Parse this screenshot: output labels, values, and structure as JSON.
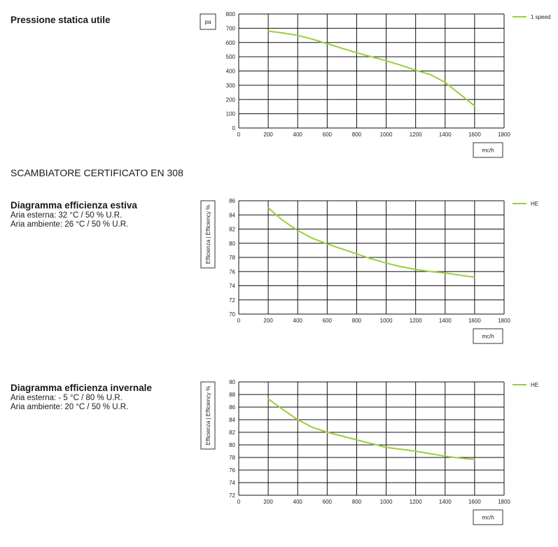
{
  "section_title": "SCAMBIATORE CERTIFICATO EN 308",
  "colors": {
    "series": "#9ccc3c",
    "grid": "#111111"
  },
  "blocks": [
    {
      "title": "Pressione statica utile",
      "subtitle": []
    },
    {
      "title": "Diagramma efficienza estiva",
      "subtitle": [
        "Aria esterna: 32 °C / 50 % U.R.",
        "Aria ambiente: 26 °C / 50 % U.R."
      ]
    },
    {
      "title": "Diagramma efficienza invernale",
      "subtitle": [
        "Aria esterna: - 5 °C / 80 % U.R.",
        "Aria ambiente: 20 °C / 50 % U.R."
      ]
    }
  ],
  "chart_data": [
    {
      "type": "line",
      "ylabel": "pa",
      "xlabel": "mc/h",
      "xlim": [
        0,
        1800
      ],
      "ylim": [
        0,
        800
      ],
      "xticks": [
        0,
        200,
        400,
        600,
        800,
        1000,
        1200,
        1400,
        1600,
        1800
      ],
      "yticks": [
        0,
        100,
        200,
        300,
        400,
        500,
        600,
        700,
        800
      ],
      "legend_position": "top-right",
      "grid": true,
      "series": [
        {
          "name": "1 speed",
          "x": [
            200,
            300,
            400,
            500,
            600,
            700,
            800,
            900,
            1000,
            1100,
            1200,
            1300,
            1400,
            1500,
            1600
          ],
          "y": [
            680,
            667,
            650,
            623,
            592,
            560,
            528,
            500,
            472,
            440,
            405,
            375,
            320,
            238,
            155
          ]
        }
      ]
    },
    {
      "type": "line",
      "ylabel": "Efficienza | Efficiency %",
      "xlabel": "mc/h",
      "xlim": [
        0,
        1800
      ],
      "ylim": [
        70,
        86
      ],
      "xticks": [
        0,
        200,
        400,
        600,
        800,
        1000,
        1200,
        1400,
        1600,
        1800
      ],
      "yticks": [
        70,
        72,
        74,
        76,
        78,
        80,
        82,
        84,
        86
      ],
      "legend_position": "top-right",
      "grid": true,
      "series": [
        {
          "name": "HE",
          "x": [
            200,
            300,
            400,
            500,
            600,
            700,
            800,
            900,
            1000,
            1100,
            1200,
            1300,
            1400,
            1500,
            1600
          ],
          "y": [
            85.0,
            83.2,
            81.8,
            80.7,
            79.9,
            79.2,
            78.5,
            77.8,
            77.2,
            76.7,
            76.3,
            76.0,
            75.8,
            75.5,
            75.2
          ]
        }
      ]
    },
    {
      "type": "line",
      "ylabel": "Efficienza | Efficiency %",
      "xlabel": "mc/h",
      "xlim": [
        0,
        1800
      ],
      "ylim": [
        72,
        90
      ],
      "xticks": [
        0,
        200,
        400,
        600,
        800,
        1000,
        1200,
        1400,
        1600,
        1800
      ],
      "yticks": [
        72,
        74,
        76,
        78,
        80,
        82,
        84,
        86,
        88,
        90
      ],
      "legend_position": "top-right",
      "grid": true,
      "series": [
        {
          "name": "HE",
          "x": [
            200,
            300,
            400,
            500,
            600,
            700,
            800,
            900,
            1000,
            1100,
            1200,
            1300,
            1400,
            1500,
            1600
          ],
          "y": [
            87.3,
            85.6,
            84.0,
            82.8,
            82.0,
            81.4,
            80.8,
            80.2,
            79.6,
            79.3,
            79.0,
            78.6,
            78.2,
            77.9,
            77.7
          ]
        }
      ]
    }
  ]
}
